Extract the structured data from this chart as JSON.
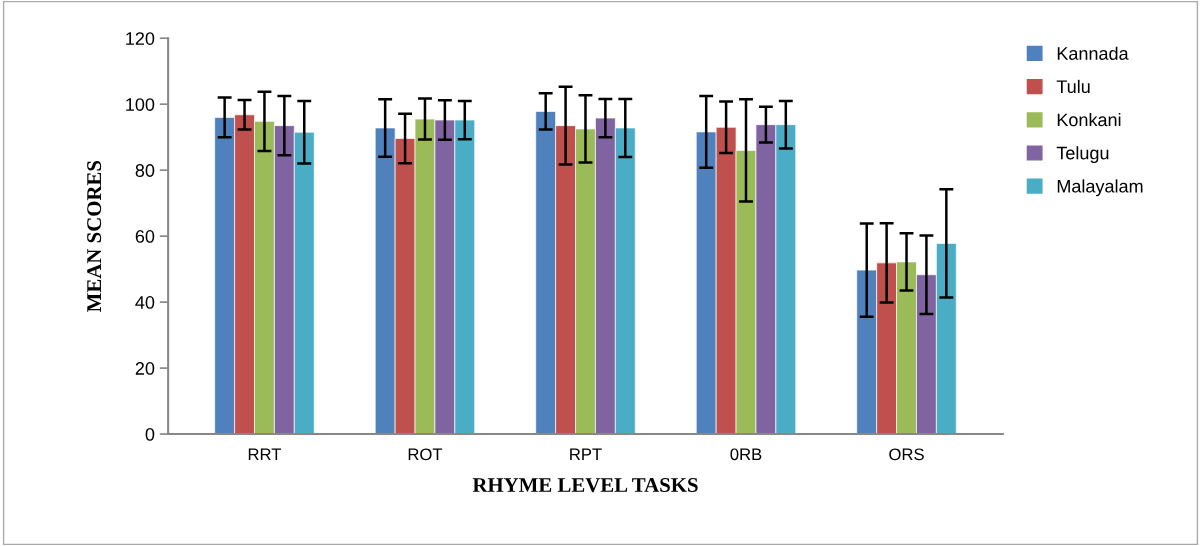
{
  "chart_data": {
    "type": "bar",
    "xlabel": "RHYME LEVEL TASKS",
    "ylabel": "MEAN SCORES",
    "categories": [
      "RRT",
      "ROT",
      "RPT",
      "0RB",
      "ORS"
    ],
    "series": [
      {
        "name": "Kannada",
        "color": "#4f81bd",
        "values": [
          96,
          92.8,
          97.8,
          91.6,
          49.7
        ],
        "errors": [
          6,
          8.7,
          5.5,
          10.9,
          14.1
        ]
      },
      {
        "name": "Tulu",
        "color": "#c0504d",
        "values": [
          96.8,
          89.6,
          93.5,
          93,
          51.9
        ],
        "errors": [
          4.5,
          7.5,
          11.8,
          7.8,
          12
        ]
      },
      {
        "name": "Konkani",
        "color": "#9bbb59",
        "values": [
          94.8,
          95.5,
          92.5,
          86,
          52.2
        ],
        "errors": [
          9,
          6.2,
          10.2,
          15.5,
          8.7
        ]
      },
      {
        "name": "Telugu",
        "color": "#8064a2",
        "values": [
          93.5,
          95.2,
          95.8,
          93.8,
          48.3
        ],
        "errors": [
          9,
          6,
          5.8,
          5.4,
          11.9
        ]
      },
      {
        "name": "Malayalam",
        "color": "#4bacc6",
        "values": [
          91.5,
          95.2,
          92.8,
          93.8,
          57.8
        ],
        "errors": [
          9.5,
          5.8,
          8.8,
          7.2,
          16.4
        ]
      }
    ],
    "ylim": [
      0,
      120
    ],
    "yticks": [
      0,
      20,
      40,
      60,
      80,
      100,
      120
    ],
    "grid": false,
    "legend": "top right"
  }
}
